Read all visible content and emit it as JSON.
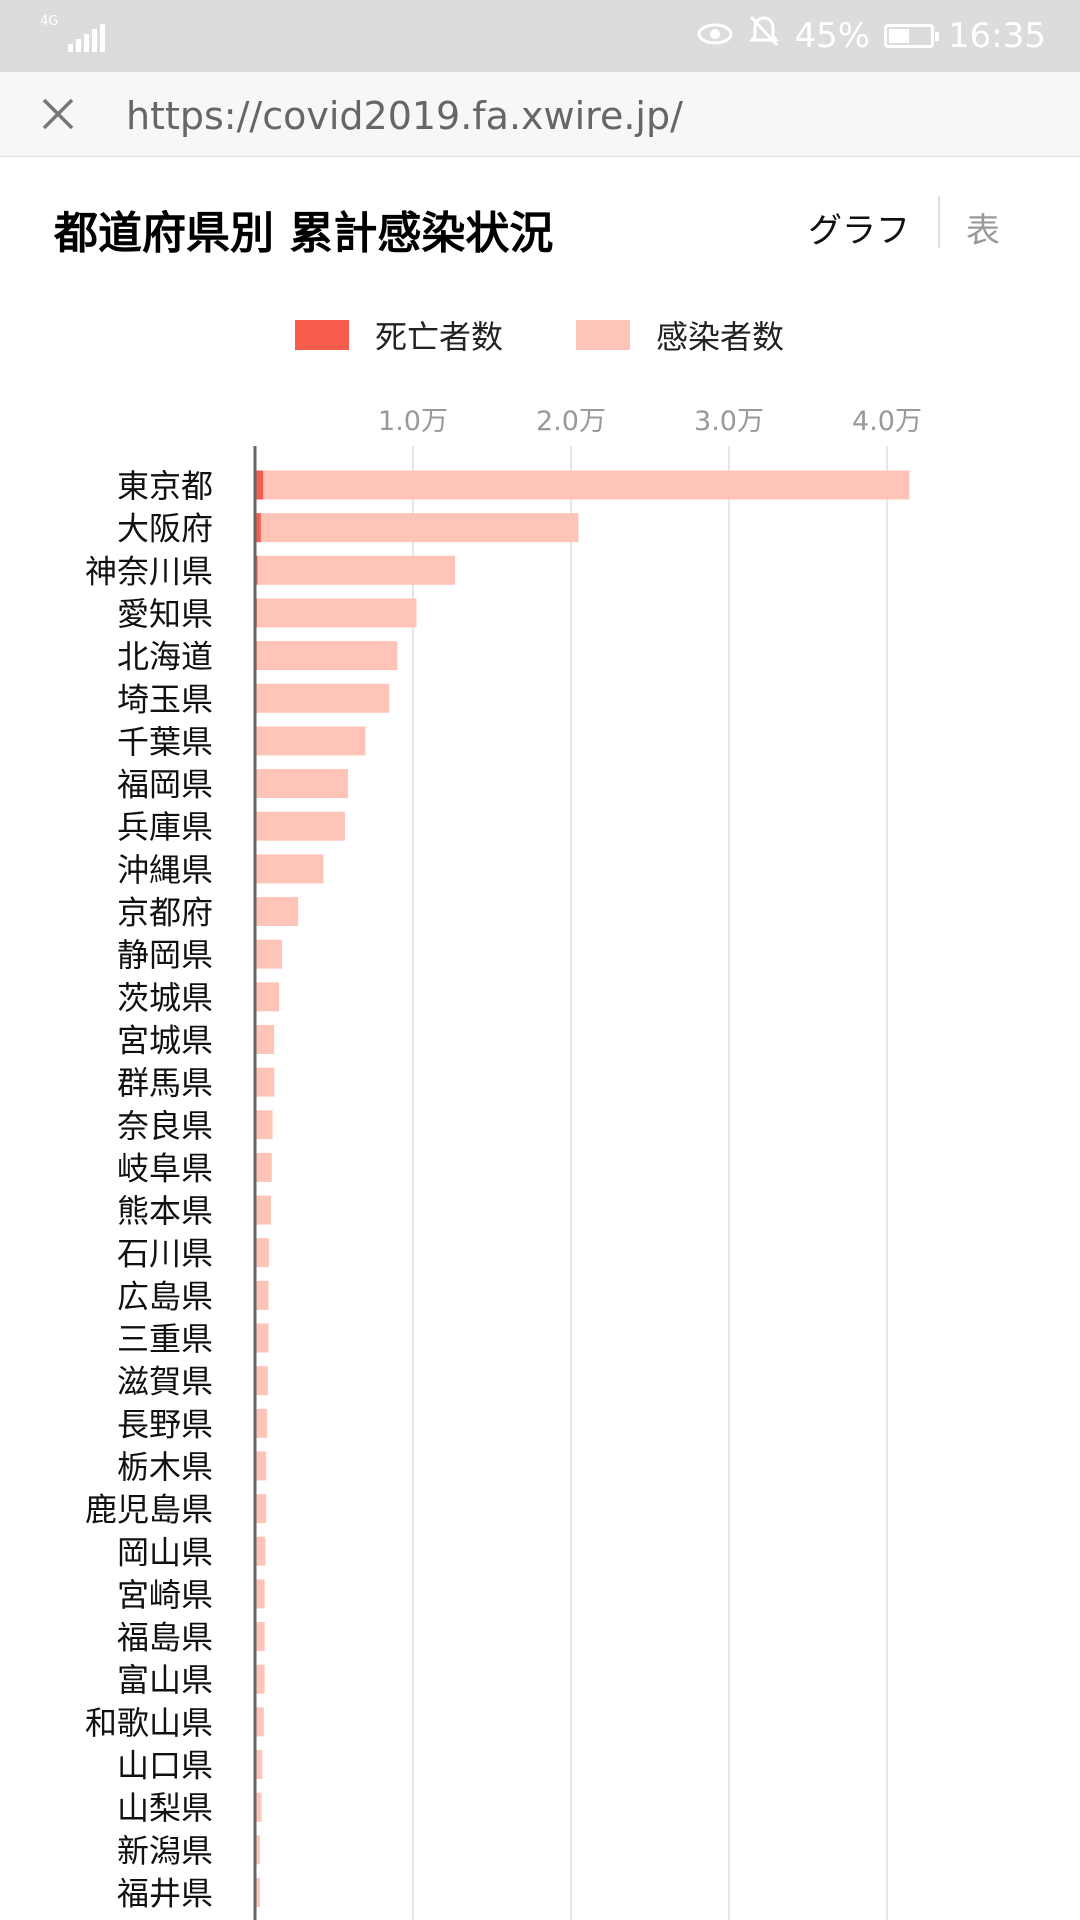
{
  "status_bar": {
    "network": "4G",
    "battery_percent": "45%",
    "time": "16:35",
    "battery_level": 0.45,
    "icons": [
      "signal-icon",
      "eye-icon",
      "bell-off-icon",
      "battery-icon"
    ]
  },
  "browser": {
    "url": "https://covid2019.fa.xwire.jp/",
    "close_icon": "close-icon"
  },
  "page": {
    "title": "都道府県別 累計感染状況",
    "tabs": {
      "graph": "グラフ",
      "table": "表"
    }
  },
  "colors": {
    "deaths": "#f75c4c",
    "infections": "#ffc4b8",
    "axis": "#666666",
    "grid": "#e6e6e6",
    "tick": "#999999"
  },
  "chart_data": {
    "type": "bar",
    "orientation": "horizontal",
    "stacked": true,
    "legend": [
      "死亡者数",
      "感染者数"
    ],
    "legend_position": "top-center",
    "x_ticks": [
      10000,
      20000,
      30000,
      40000
    ],
    "x_tick_labels": [
      "1.0万",
      "2.0万",
      "3.0万",
      "4.0万"
    ],
    "xlim": [
      0,
      42000
    ],
    "grid": true,
    "categories": [
      "東京都",
      "大阪府",
      "神奈川県",
      "愛知県",
      "北海道",
      "埼玉県",
      "千葉県",
      "福岡県",
      "兵庫県",
      "沖縄県",
      "京都府",
      "静岡県",
      "茨城県",
      "宮城県",
      "群馬県",
      "奈良県",
      "岐阜県",
      "熊本県",
      "石川県",
      "広島県",
      "三重県",
      "滋賀県",
      "長野県",
      "栃木県",
      "鹿児島県",
      "岡山県",
      "宮崎県",
      "福島県",
      "富山県",
      "和歌山県",
      "山口県",
      "山梨県",
      "新潟県",
      "福井県"
    ],
    "series": [
      {
        "name": "死亡者数",
        "values": [
          520,
          370,
          160,
          120,
          110,
          100,
          90,
          80,
          90,
          30,
          30,
          10,
          20,
          10,
          20,
          10,
          10,
          10,
          30,
          10,
          10,
          10,
          20,
          10,
          10,
          10,
          10,
          10,
          30,
          10,
          10,
          10,
          10,
          10
        ]
      },
      {
        "name": "感染者数",
        "values": [
          40900,
          20100,
          12500,
          10100,
          8900,
          8400,
          6900,
          5800,
          5600,
          4300,
          2700,
          1700,
          1500,
          1200,
          1200,
          1100,
          1050,
          1000,
          850,
          850,
          850,
          800,
          750,
          700,
          700,
          650,
          600,
          600,
          580,
          550,
          450,
          400,
          300,
          300
        ]
      }
    ]
  }
}
